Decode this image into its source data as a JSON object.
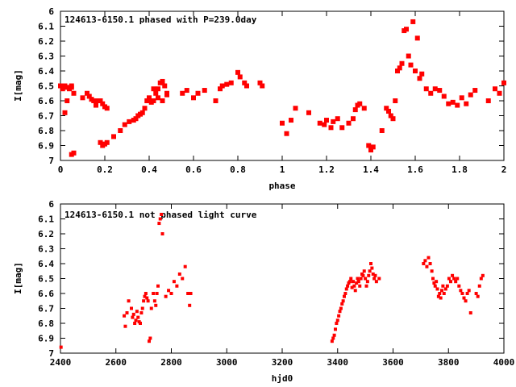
{
  "chart_data": [
    {
      "type": "scatter",
      "title": "124613-6150.1 phased with P=239.0day",
      "xlabel": "phase",
      "ylabel": "I[mag]",
      "xlim": [
        0,
        2
      ],
      "ylim": [
        7,
        6
      ],
      "y_inverted": true,
      "xticks": [
        "0",
        "0.2",
        "0.4",
        "0.6",
        "0.8",
        "1",
        "1.2",
        "1.4",
        "1.6",
        "1.8",
        "2"
      ],
      "xtick_values": [
        0,
        0.2,
        0.4,
        0.6,
        0.8,
        1,
        1.2,
        1.4,
        1.6,
        1.8,
        2
      ],
      "yticks": [
        "6",
        "6.1",
        "6.2",
        "6.3",
        "6.4",
        "6.5",
        "6.6",
        "6.7",
        "6.8",
        "6.9",
        "7"
      ],
      "ytick_values": [
        6,
        6.1,
        6.2,
        6.3,
        6.4,
        6.5,
        6.6,
        6.7,
        6.8,
        6.9,
        7
      ],
      "marker_color": "#ff0000",
      "series": [
        {
          "x": [
            0.0,
            0.01,
            0.02,
            0.03,
            0.04,
            0.05,
            0.06,
            0.02,
            0.03,
            0.05,
            0.05,
            0.06,
            0.1,
            0.12,
            0.13,
            0.14,
            0.15,
            0.16,
            0.17,
            0.18,
            0.19,
            0.2,
            0.21,
            0.18,
            0.19,
            0.2,
            0.21,
            0.24,
            0.27,
            0.29,
            0.31,
            0.33,
            0.34,
            0.35,
            0.36,
            0.37,
            0.38,
            0.39,
            0.4,
            0.41,
            0.42,
            0.43,
            0.44,
            0.45,
            0.46,
            0.47,
            0.48,
            0.42,
            0.44,
            0.46,
            0.48,
            0.55,
            0.57,
            0.6,
            0.62,
            0.65,
            0.7,
            0.72,
            0.73,
            0.75,
            0.77,
            0.8,
            0.81,
            0.83,
            0.84,
            0.9,
            0.91,
            1.0,
            1.02,
            1.04,
            1.06,
            1.12,
            1.17,
            1.19,
            1.2,
            1.22,
            1.23,
            1.25,
            1.27,
            1.3,
            1.32,
            1.33,
            1.34,
            1.35,
            1.37,
            1.39,
            1.4,
            1.41,
            1.45,
            1.47,
            1.48,
            1.49,
            1.5,
            1.51,
            1.52,
            1.53,
            1.54,
            1.55,
            1.56,
            1.57,
            1.58,
            1.59,
            1.6,
            1.61,
            1.62,
            1.63,
            1.65,
            1.67,
            1.69,
            1.71,
            1.73,
            1.75,
            1.77,
            1.79,
            1.81,
            1.83,
            1.85,
            1.87,
            1.93,
            1.96,
            1.98,
            2.0
          ],
          "y": [
            6.5,
            6.52,
            6.5,
            6.51,
            6.52,
            6.96,
            6.95,
            6.68,
            6.6,
            6.51,
            6.5,
            6.55,
            6.58,
            6.55,
            6.57,
            6.59,
            6.6,
            6.63,
            6.6,
            6.88,
            6.9,
            6.89,
            6.88,
            6.6,
            6.62,
            6.64,
            6.65,
            6.84,
            6.8,
            6.76,
            6.74,
            6.73,
            6.72,
            6.7,
            6.69,
            6.68,
            6.65,
            6.6,
            6.58,
            6.61,
            6.6,
            6.55,
            6.52,
            6.48,
            6.47,
            6.5,
            6.55,
            6.52,
            6.58,
            6.6,
            6.56,
            6.55,
            6.53,
            6.58,
            6.55,
            6.53,
            6.6,
            6.52,
            6.5,
            6.49,
            6.48,
            6.41,
            6.44,
            6.48,
            6.5,
            6.48,
            6.5,
            6.75,
            6.82,
            6.73,
            6.65,
            6.68,
            6.75,
            6.76,
            6.73,
            6.78,
            6.74,
            6.72,
            6.78,
            6.75,
            6.72,
            6.66,
            6.63,
            6.62,
            6.65,
            6.9,
            6.93,
            6.91,
            6.8,
            6.65,
            6.67,
            6.7,
            6.72,
            6.6,
            6.4,
            6.38,
            6.35,
            6.13,
            6.12,
            6.3,
            6.36,
            6.07,
            6.4,
            6.18,
            6.45,
            6.42,
            6.52,
            6.55,
            6.52,
            6.53,
            6.57,
            6.62,
            6.61,
            6.63,
            6.58,
            6.62,
            6.56,
            6.53,
            6.6,
            6.52,
            6.55,
            6.48
          ]
        }
      ]
    },
    {
      "type": "scatter",
      "title": "124613-6150.1 not phased light curve",
      "xlabel": "hjd0",
      "ylabel": "I[mag]",
      "xlim": [
        2400,
        4000
      ],
      "ylim": [
        7,
        6
      ],
      "y_inverted": true,
      "xticks": [
        "2400",
        "2600",
        "2800",
        "3000",
        "3200",
        "3400",
        "3600",
        "3800",
        "4000"
      ],
      "xtick_values": [
        2400,
        2600,
        2800,
        3000,
        3200,
        3400,
        3600,
        3800,
        4000
      ],
      "yticks": [
        "6",
        "6.1",
        "6.2",
        "6.3",
        "6.4",
        "6.5",
        "6.6",
        "6.7",
        "6.8",
        "6.9",
        "7"
      ],
      "ytick_values": [
        6,
        6.1,
        6.2,
        6.3,
        6.4,
        6.5,
        6.6,
        6.7,
        6.8,
        6.9,
        7
      ],
      "marker_color": "#ff0000",
      "series": [
        {
          "x": [
            2402,
            2630,
            2634,
            2640,
            2646,
            2656,
            2660,
            2664,
            2668,
            2672,
            2676,
            2680,
            2684,
            2688,
            2692,
            2696,
            2700,
            2704,
            2708,
            2712,
            2716,
            2720,
            2724,
            2728,
            2735,
            2740,
            2744,
            2748,
            2752,
            2756,
            2760,
            2764,
            2768,
            2780,
            2790,
            2800,
            2810,
            2820,
            2830,
            2840,
            2850,
            2860,
            2866,
            2870,
            3380,
            3384,
            3388,
            3392,
            3396,
            3400,
            3404,
            3408,
            3412,
            3416,
            3420,
            3424,
            3428,
            3432,
            3436,
            3440,
            3444,
            3448,
            3452,
            3456,
            3460,
            3464,
            3468,
            3472,
            3476,
            3480,
            3484,
            3488,
            3492,
            3496,
            3500,
            3504,
            3508,
            3512,
            3516,
            3520,
            3524,
            3528,
            3532,
            3536,
            3540,
            3550,
            3710,
            3716,
            3722,
            3728,
            3734,
            3740,
            3744,
            3748,
            3752,
            3756,
            3760,
            3764,
            3768,
            3772,
            3776,
            3780,
            3784,
            3790,
            3796,
            3802,
            3808,
            3814,
            3820,
            3826,
            3832,
            3838,
            3844,
            3850,
            3856,
            3862,
            3868,
            3874,
            3880,
            3900,
            3906,
            3912,
            3918,
            3924
          ],
          "y": [
            6.96,
            6.75,
            6.82,
            6.73,
            6.65,
            6.7,
            6.76,
            6.74,
            6.8,
            6.78,
            6.72,
            6.76,
            6.79,
            6.8,
            6.73,
            6.7,
            6.65,
            6.62,
            6.6,
            6.63,
            6.65,
            6.92,
            6.9,
            6.7,
            6.6,
            6.65,
            6.68,
            6.6,
            6.55,
            6.13,
            6.1,
            6.07,
            6.2,
            6.62,
            6.58,
            6.6,
            6.52,
            6.55,
            6.47,
            6.5,
            6.42,
            6.6,
            6.68,
            6.6,
            6.92,
            6.9,
            6.88,
            6.84,
            6.8,
            6.78,
            6.75,
            6.72,
            6.7,
            6.67,
            6.65,
            6.62,
            6.6,
            6.57,
            6.55,
            6.53,
            6.52,
            6.5,
            6.56,
            6.52,
            6.55,
            6.58,
            6.53,
            6.5,
            6.52,
            6.55,
            6.5,
            6.47,
            6.48,
            6.45,
            6.5,
            6.55,
            6.52,
            6.48,
            6.45,
            6.4,
            6.43,
            6.47,
            6.5,
            6.48,
            6.52,
            6.5,
            6.4,
            6.38,
            6.42,
            6.36,
            6.4,
            6.45,
            6.5,
            6.53,
            6.55,
            6.52,
            6.57,
            6.62,
            6.6,
            6.63,
            6.58,
            6.55,
            6.6,
            6.57,
            6.55,
            6.5,
            6.52,
            6.48,
            6.5,
            6.52,
            6.5,
            6.55,
            6.58,
            6.6,
            6.63,
            6.65,
            6.6,
            6.58,
            6.73,
            6.6,
            6.62,
            6.55,
            6.5,
            6.48
          ]
        }
      ]
    }
  ]
}
